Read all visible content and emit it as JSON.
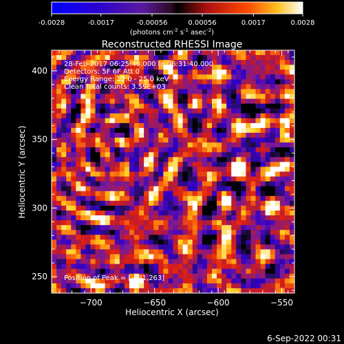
{
  "chart_data": {
    "type": "heatmap",
    "title": "Reconstructed RHESSI Image",
    "xlabel": "Heliocentric X (arcsec)",
    "ylabel": "Heliocentric Y (arcsec)",
    "xlim": [
      -731,
      -540
    ],
    "ylim": [
      238,
      415
    ],
    "x_ticks": [
      "-700",
      "-650",
      "-600",
      "-550"
    ],
    "x_tick_values": [
      -700,
      -650,
      -600,
      -550
    ],
    "y_ticks": [
      "250",
      "300",
      "350",
      "400"
    ],
    "y_tick_values": [
      250,
      300,
      350,
      400
    ],
    "colorbar": {
      "min": -0.0028,
      "max": 0.0028,
      "tick_labels": [
        "-0.0028",
        "-0.0017",
        "-0.00056",
        "0.00056",
        "0.0017",
        "0.0028"
      ],
      "tick_values": [
        -0.0028,
        -0.0017,
        -0.00056,
        0.00056,
        0.0017,
        0.0028
      ],
      "unit_text": "(photons cm",
      "unit_sup1": "-2",
      "unit_mid": " s",
      "unit_sup2": "-1",
      "unit_end": " asec",
      "unit_sup3": "-2",
      "unit_close": ")"
    },
    "annotations": {
      "line1": "28-Feb-2017 06:25:40.000 to 06:31:40.000",
      "line2": "Detectors: 5F 6F  Att 0",
      "line3": "Energy Range: 12.0 - 25.0 keV",
      "line4": "Clean     Total counts: 3.59E+03",
      "peak": "Position of Peak = [-691,263]"
    },
    "peak_position": [
      -691,
      263
    ],
    "grid": false
  },
  "footer": {
    "date": "6-Sep-2022 00:31"
  },
  "colors": {
    "background": "#000000",
    "colormap": [
      "#000000",
      "#2a1060",
      "#3000c8",
      "#7a1a9a",
      "#b01a40",
      "#e02010",
      "#ff7a10",
      "#ffd020",
      "#ffffff"
    ]
  }
}
